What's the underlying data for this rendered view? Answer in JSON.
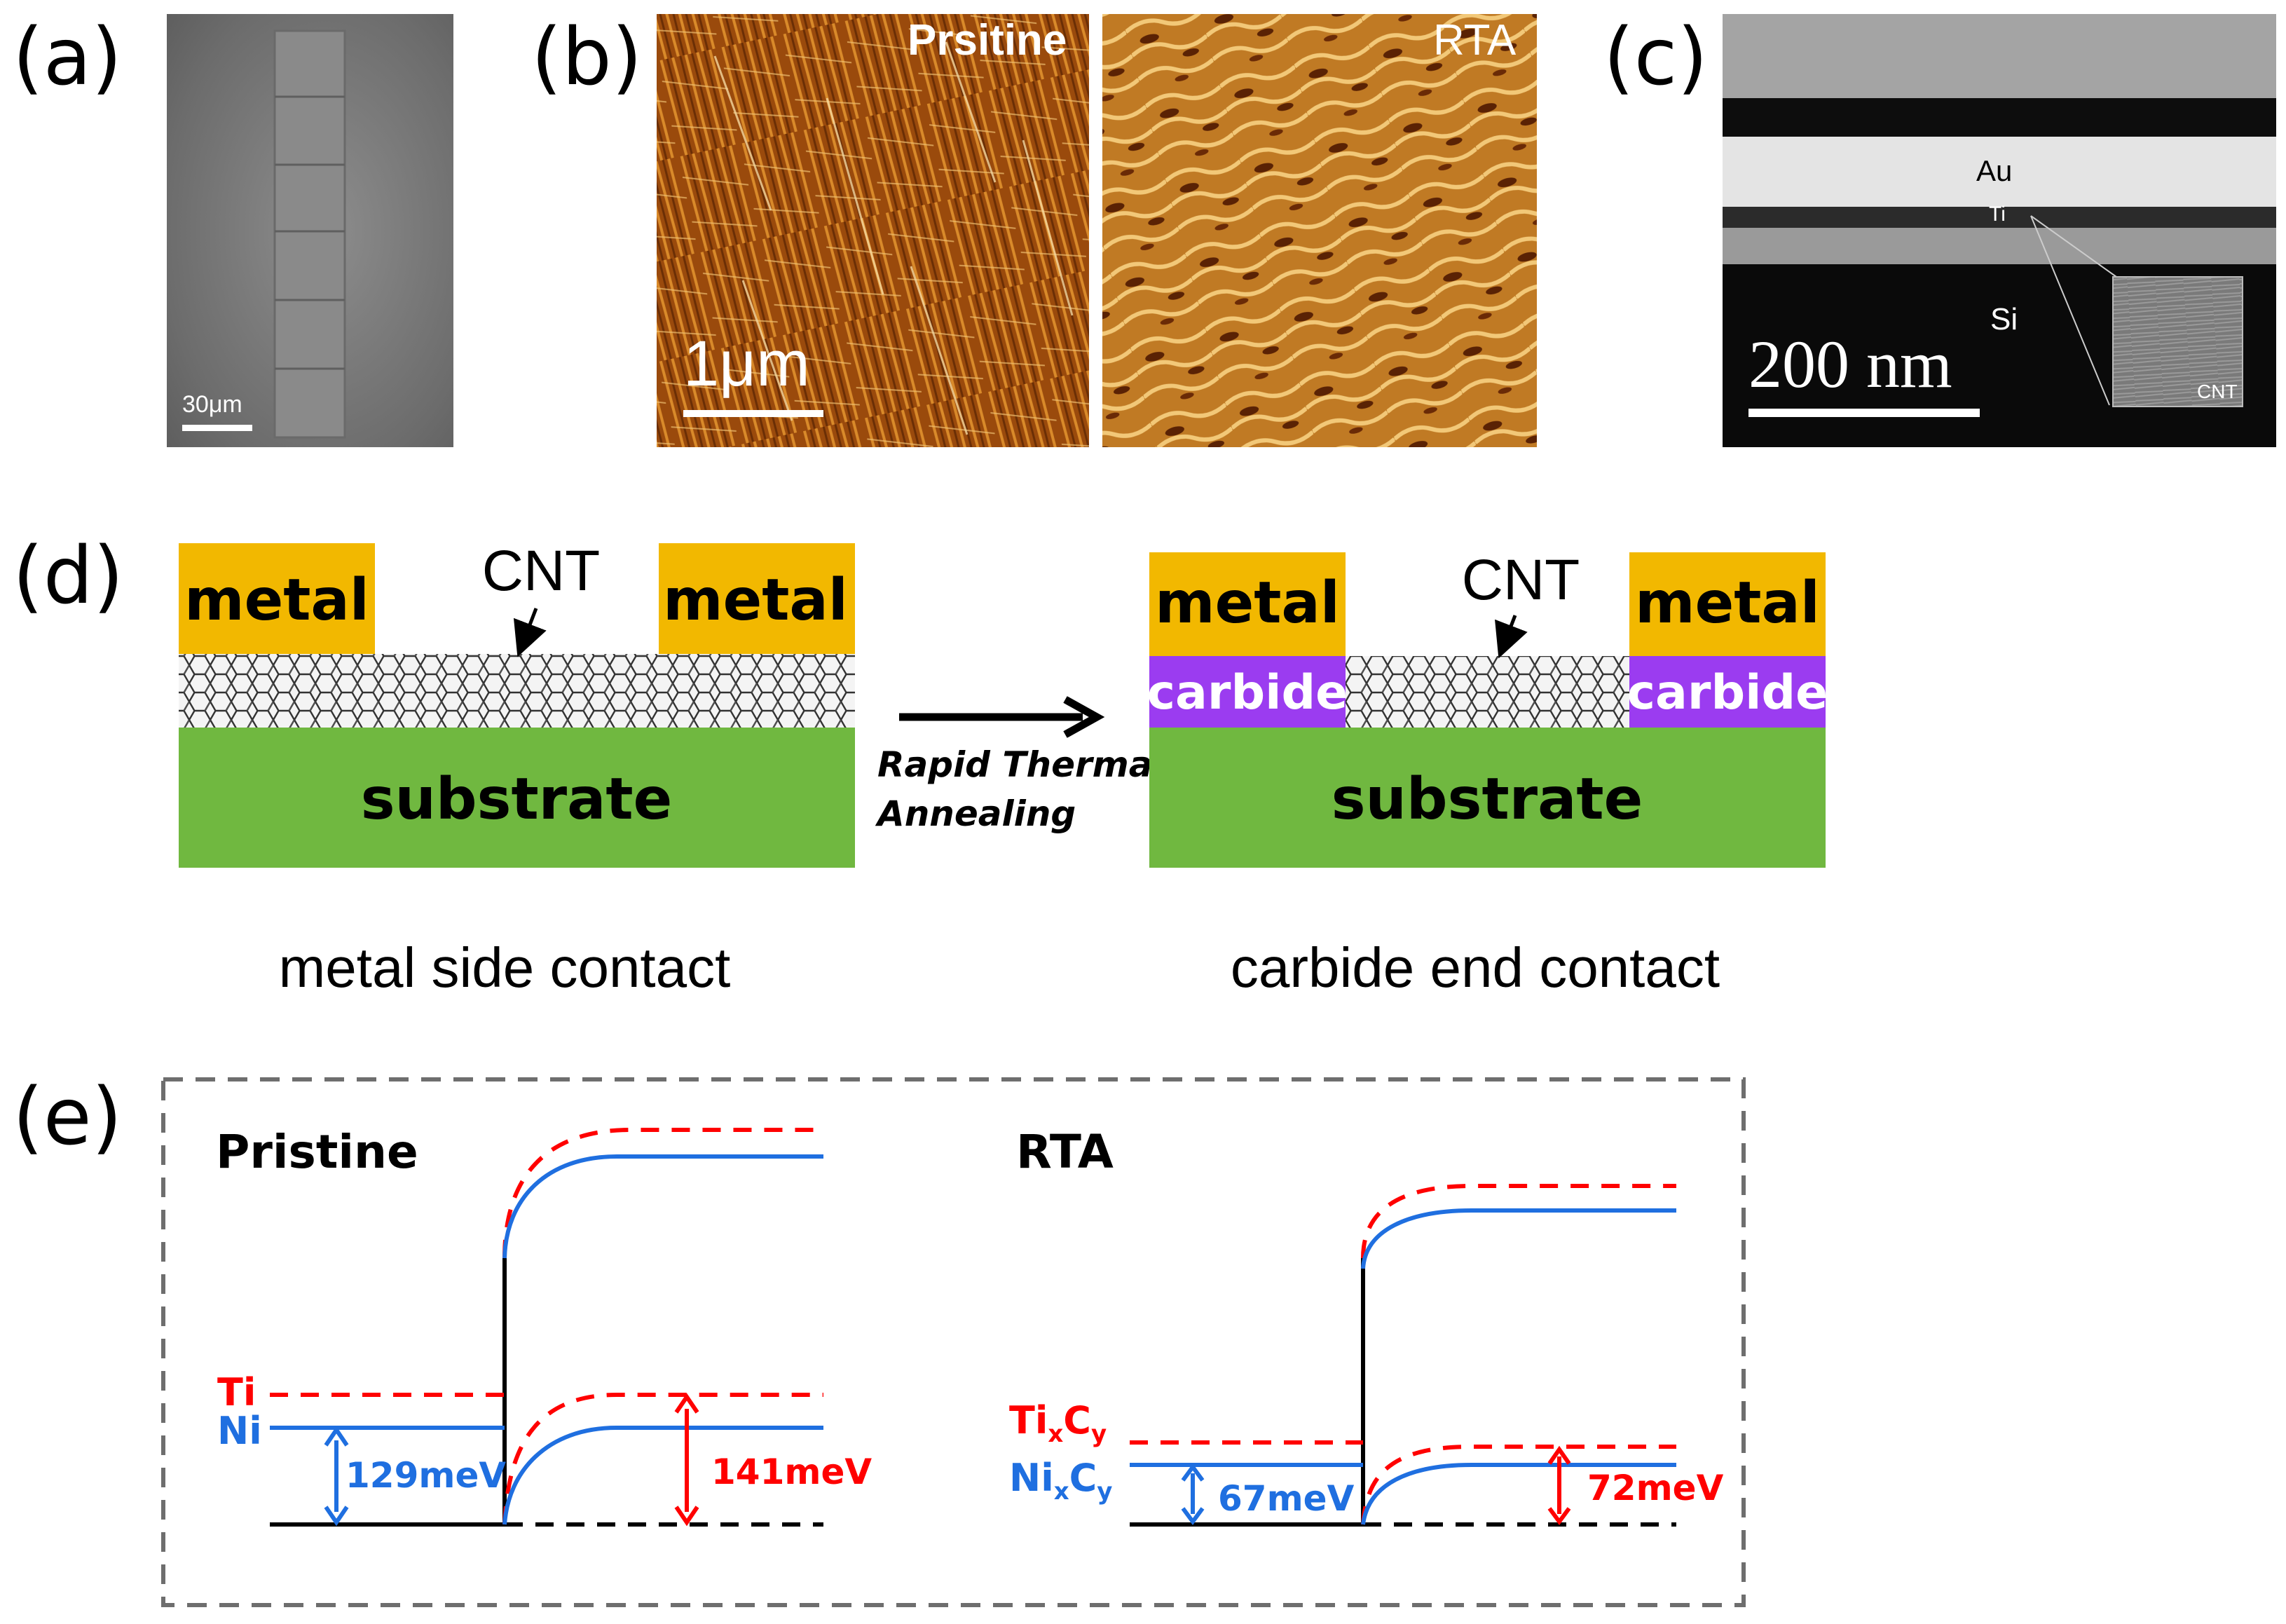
{
  "panel_labels": {
    "a": "(a)",
    "b": "(b)",
    "c": "(c)",
    "d": "(d)",
    "e": "(e)"
  },
  "panel_a": {
    "scale_bar": "30μm"
  },
  "panel_b": {
    "left_title": "Prsitine",
    "right_title": "RTA",
    "scale_bar": "1μm"
  },
  "panel_c": {
    "au": "Au",
    "ti": "Ti",
    "si": "Si",
    "scale_bar": "200 nm",
    "inset": "CNT"
  },
  "panel_d": {
    "left": {
      "metal_left": "metal",
      "metal_right": "metal",
      "cnt": "CNT",
      "substrate": "substrate",
      "caption": "metal side contact"
    },
    "arrow": {
      "line1": "Rapid Thermal",
      "line2": "Annealing"
    },
    "right": {
      "metal_left": "metal",
      "metal_right": "metal",
      "carbide_left": "carbide",
      "carbide_right": "carbide",
      "cnt": "CNT",
      "substrate": "substrate",
      "caption": "carbide end contact"
    },
    "colors": {
      "metal": "#F2B800",
      "substrate": "#70B840",
      "carbide": "#9B3CF0"
    }
  },
  "panel_e": {
    "left": {
      "title": "Pristine",
      "ti": "Ti",
      "ni": "Ni",
      "ni_barrier": "129meV",
      "ti_barrier": "141meV"
    },
    "right": {
      "title": "RTA",
      "tix": "Ti",
      "tix_sub1": "x",
      "tix_c": "C",
      "tix_sub2": "y",
      "nix": "Ni",
      "nix_sub1": "x",
      "nix_c": "C",
      "nix_sub2": "y",
      "ni_barrier": "67meV",
      "ti_barrier": "72meV"
    },
    "colors": {
      "ti": "#FF0000",
      "ni": "#1F6FE0"
    }
  }
}
